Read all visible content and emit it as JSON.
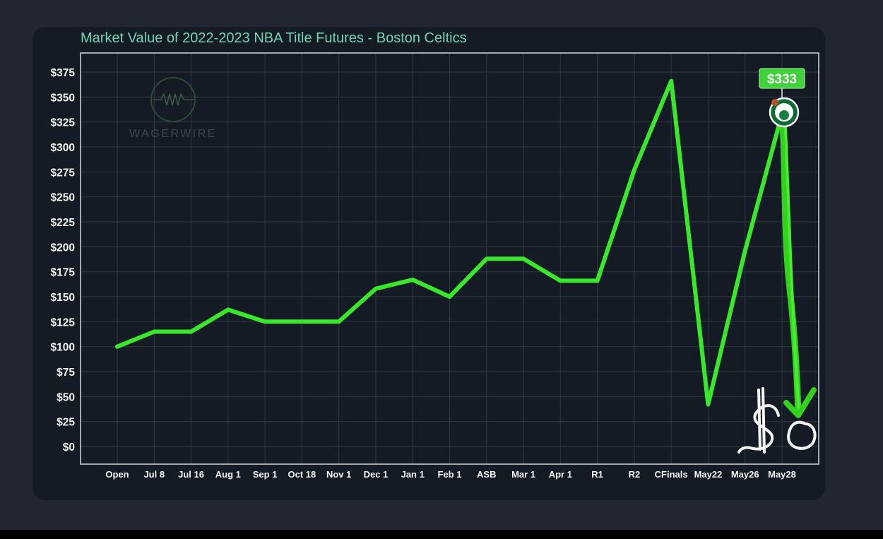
{
  "title": "Market Value of 2022-2023 NBA Title Futures - Boston Celtics",
  "watermark": "WAGERWIRE",
  "current_value_label": "$333",
  "annotation": {
    "handwritten_text": "$0",
    "arrow": "down-arrow"
  },
  "colors": {
    "page_bg": "#222631",
    "panel_bg": "#141b24",
    "title": "#6fd3b4",
    "line": "#39e82a",
    "grid": "#2a3440",
    "axis_box": "#c9ccd0",
    "tick_label": "#f2f2f2"
  },
  "chart_data": {
    "type": "line",
    "title": "Market Value of 2022-2023 NBA Title Futures - Boston Celtics",
    "xlabel": "",
    "ylabel": "",
    "ylim": [
      0,
      375
    ],
    "grid": true,
    "legend": null,
    "y_ticks": [
      "$0",
      "$25",
      "$50",
      "$75",
      "$100",
      "$125",
      "$150",
      "$175",
      "$200",
      "$225",
      "$250",
      "$275",
      "$300",
      "$325",
      "$350",
      "$375"
    ],
    "categories": [
      "Open",
      "Jul 8",
      "Jul 16",
      "Aug 1",
      "Sep 1",
      "Oct 18",
      "Nov 1",
      "Dec 1",
      "Jan 1",
      "Feb 1",
      "ASB",
      "Mar 1",
      "Apr 1",
      "R1",
      "R2",
      "CFinals",
      "May22",
      "May26",
      "May28"
    ],
    "series": [
      {
        "name": "Boston Celtics",
        "values": [
          100,
          115,
          115,
          137,
          125,
          125,
          125,
          158,
          167,
          150,
          188,
          188,
          166,
          166,
          277,
          366,
          42,
          196,
          333
        ]
      }
    ],
    "annotations": [
      {
        "type": "label",
        "x": "May28",
        "text": "$333"
      },
      {
        "type": "hand-drawn arrow",
        "from": 333,
        "to": 0,
        "text": "$0"
      }
    ]
  }
}
